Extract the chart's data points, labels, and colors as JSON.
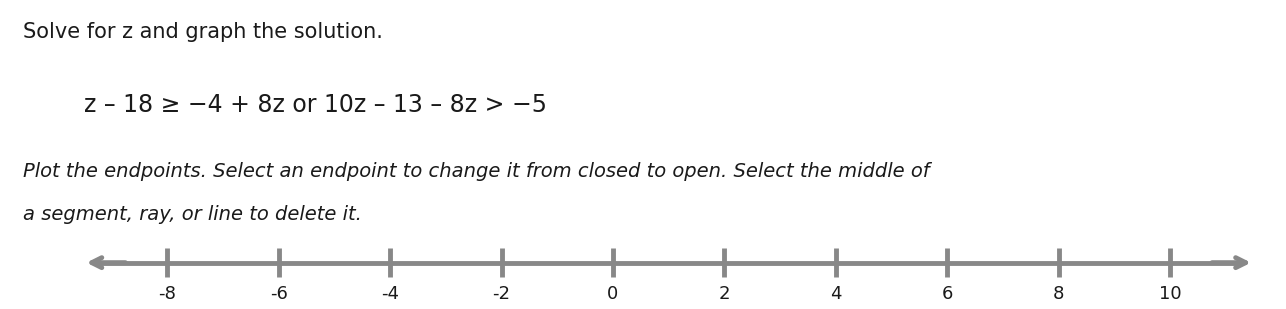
{
  "title_line1": "Solve for z and graph the solution.",
  "equation": "z – 18 ≥ −4 + 8z or 10z – 13 – 8z > −5",
  "instruction_line1": "Plot the endpoints. Select an endpoint to change it from closed to open. Select the middle of",
  "instruction_line2": "a segment, ray, or line to delete it.",
  "numberline_min": -9.5,
  "numberline_max": 11.5,
  "tick_values": [
    -8,
    -6,
    -4,
    -2,
    0,
    2,
    4,
    6,
    8,
    10
  ],
  "axis_color": "#888888",
  "text_color": "#1a1a1a",
  "background_color": "#ffffff",
  "title_fontsize": 15,
  "equation_fontsize": 17,
  "instruction_fontsize": 14,
  "tick_fontsize": 13
}
